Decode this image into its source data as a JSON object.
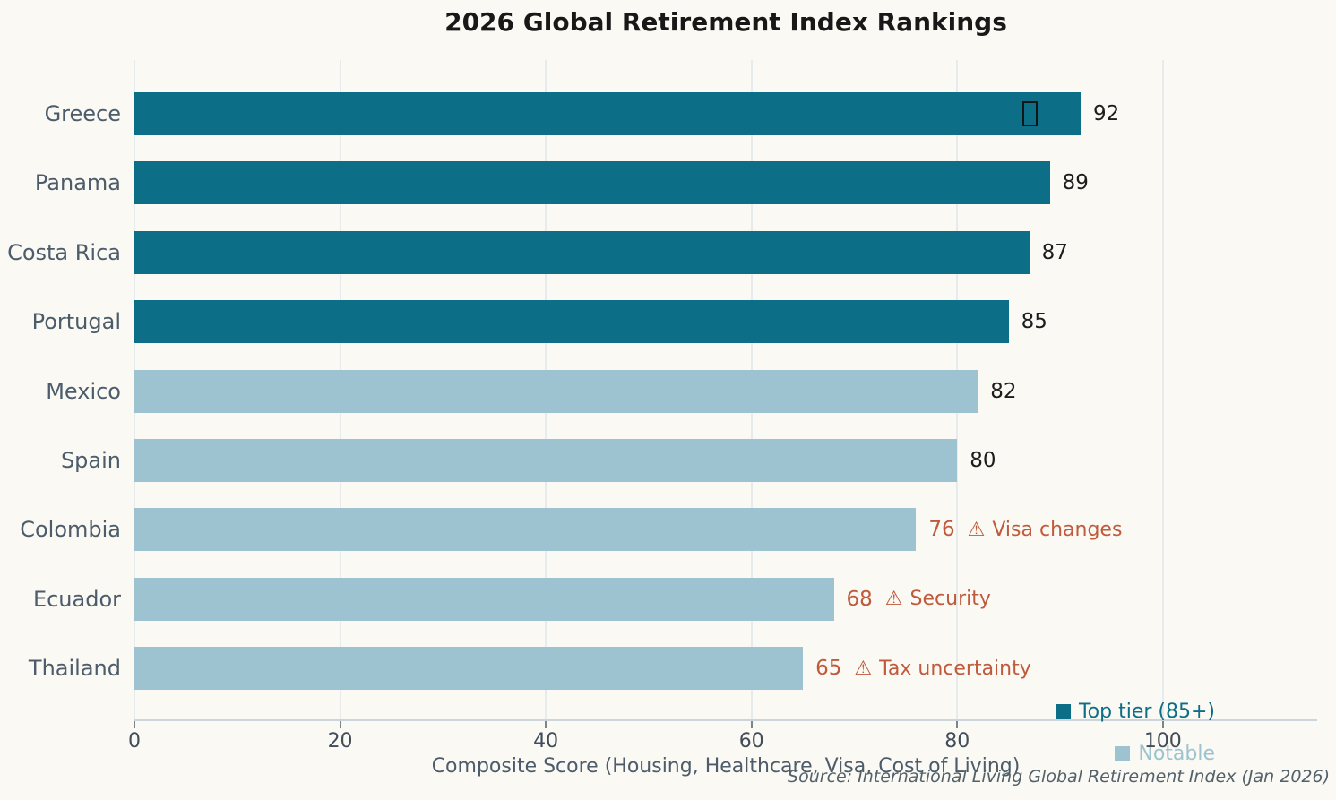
{
  "title": "2026 Global Retirement Index Rankings",
  "x_axis": {
    "label": "Composite Score (Housing, Healthcare, Visa, Cost of Living)",
    "ticks": [
      "0",
      "20",
      "40",
      "60",
      "80",
      "100"
    ],
    "tick_values": [
      0,
      20,
      40,
      60,
      80,
      100
    ]
  },
  "source_note": "Source: International Living Global Retirement Index (Jan 2026)",
  "legend": {
    "position": "bottom-right",
    "items": [
      {
        "label": "Top tier (85+)",
        "color": "#0d6e87"
      },
      {
        "label": "Notable",
        "color": "#9cc3cf"
      }
    ]
  },
  "colors": {
    "background": "#faf9f3",
    "top_tier": "#0d6e87",
    "notable": "#9cc3cf",
    "warning": "#c05a3c",
    "category_label": "#4d5c6a",
    "value_label": "#1d1d1d",
    "gridline": "#e8ebee",
    "axis_line": "#ccd5da"
  },
  "chart_data": {
    "type": "bar",
    "orientation": "horizontal",
    "title": "2026 Global Retirement Index Rankings",
    "xlabel": "Composite Score (Housing, Healthcare, Visa, Cost of Living)",
    "xlim": [
      0,
      115
    ],
    "grid": "vertical",
    "legend_position": "lower right",
    "categories": [
      "Greece",
      "Panama",
      "Costa Rica",
      "Portugal",
      "Mexico",
      "Spain",
      "Colombia",
      "Ecuador",
      "Thailand"
    ],
    "values": [
      92,
      89,
      87,
      85,
      82,
      80,
      76,
      68,
      65
    ],
    "rows": [
      {
        "country": "Greece",
        "value": 92,
        "tier": "top",
        "bar_icon": "missing-glyph-box"
      },
      {
        "country": "Panama",
        "value": 89,
        "tier": "top"
      },
      {
        "country": "Costa Rica",
        "value": 87,
        "tier": "top"
      },
      {
        "country": "Portugal",
        "value": 85,
        "tier": "top"
      },
      {
        "country": "Mexico",
        "value": 82,
        "tier": "notable"
      },
      {
        "country": "Spain",
        "value": 80,
        "tier": "notable"
      },
      {
        "country": "Colombia",
        "value": 76,
        "tier": "notable",
        "warning": {
          "icon": "⚠",
          "label": "Visa changes"
        }
      },
      {
        "country": "Ecuador",
        "value": 68,
        "tier": "notable",
        "warning": {
          "icon": "⚠",
          "label": "Security"
        }
      },
      {
        "country": "Thailand",
        "value": 65,
        "tier": "notable",
        "warning": {
          "icon": "⚠",
          "label": "Tax uncertainty"
        }
      }
    ]
  }
}
